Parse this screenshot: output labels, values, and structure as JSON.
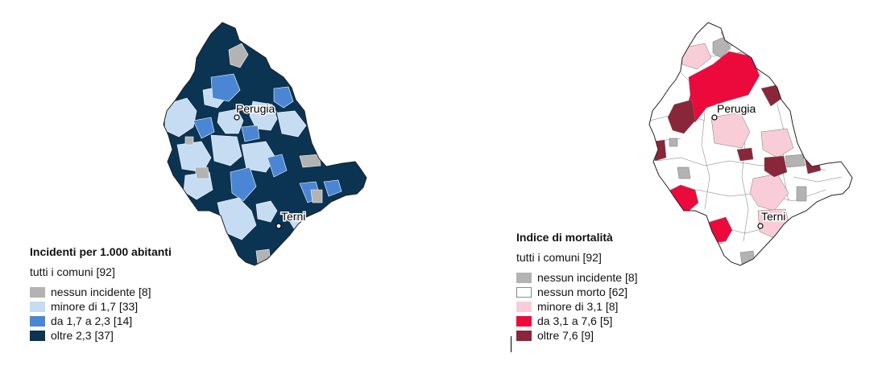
{
  "maps": [
    {
      "title": "Incidenti per 1.000 abitanti",
      "subtitle": "tutti i comuni [92]",
      "cities": [
        {
          "name": "Perugia"
        },
        {
          "name": "Terni"
        }
      ],
      "legend": [
        {
          "label": "nessun incidente [8]",
          "color": "#b3b3b3"
        },
        {
          "label": "minore di 1,7 [33]",
          "color": "#c5dcf2"
        },
        {
          "label": "da 1,7 a 2,3 [14]",
          "color": "#4a86d4"
        },
        {
          "label": "oltre 2,3 [37]",
          "color": "#0b3352"
        }
      ]
    },
    {
      "title": "Indice di mortalità",
      "subtitle": "tutti i comuni [92]",
      "cities": [
        {
          "name": "Perugia"
        },
        {
          "name": "Terni"
        }
      ],
      "legend": [
        {
          "label": "nessun incidente [8]",
          "color": "#b3b3b3"
        },
        {
          "label": "nessun morto [62]",
          "color": "#ffffff"
        },
        {
          "label": "minore di 3,1 [8]",
          "color": "#f9cdd8"
        },
        {
          "label": "da 3,1 a 7,6 [5]",
          "color": "#ec0a3c"
        },
        {
          "label": "oltre 7,6 [9]",
          "color": "#8a2639"
        }
      ]
    }
  ]
}
